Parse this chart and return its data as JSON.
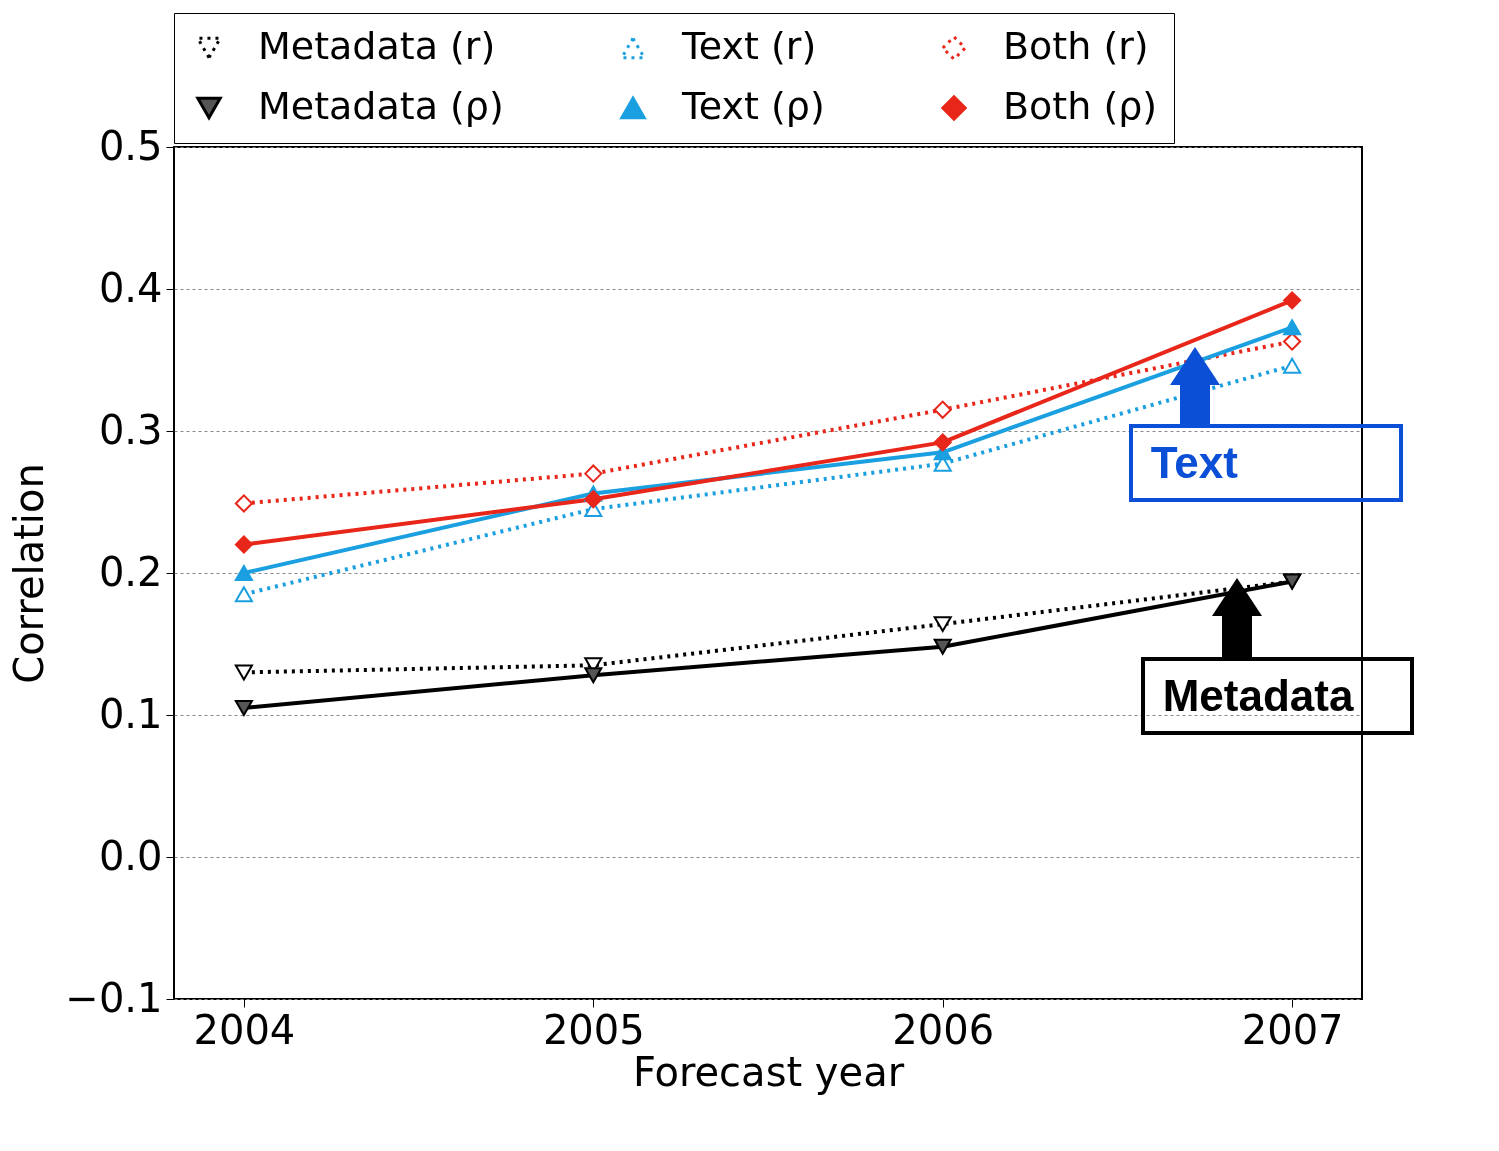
{
  "chart_data": {
    "type": "line",
    "xlabel": "Forecast year",
    "ylabel": "Correlation",
    "x": [
      2004,
      2005,
      2006,
      2007
    ],
    "xlim": [
      2003.8,
      2007.2
    ],
    "xticks": [
      2004,
      2005,
      2006,
      2007
    ],
    "ylim": [
      -0.1,
      0.5
    ],
    "yticks": [
      -0.1,
      {
        "value": 0,
        "label": "0.0"
      },
      0.1,
      0.2,
      0.3,
      0.4,
      0.5
    ],
    "grid": "y",
    "legend": "top",
    "series": [
      {
        "name": "Metadata (r)",
        "color": "#000000",
        "marker": "triangle-down",
        "line_style": "dotted",
        "values": [
          0.13,
          0.135,
          0.164,
          0.194
        ]
      },
      {
        "name": "Text (r)",
        "color": "#1a9fe0",
        "marker": "triangle",
        "line_style": "dotted",
        "values": [
          0.185,
          0.245,
          0.277,
          0.346
        ]
      },
      {
        "name": "Both (r)",
        "color": "#e8261a",
        "marker": "diamond",
        "line_style": "dotted",
        "values": [
          0.249,
          0.27,
          0.315,
          0.363
        ]
      },
      {
        "name": "Metadata (ρ)",
        "color": "#000000",
        "marker": "triangle-down",
        "line_style": "solid",
        "values": [
          0.105,
          0.128,
          0.148,
          0.194
        ]
      },
      {
        "name": "Text (ρ)",
        "color": "#1a9fe0",
        "marker": "triangle",
        "line_style": "solid",
        "values": [
          0.2,
          0.256,
          0.285,
          0.373
        ]
      },
      {
        "name": "Both (ρ)",
        "color": "#e8261a",
        "marker": "diamond",
        "line_style": "solid",
        "values": [
          0.22,
          0.252,
          0.292,
          0.392
        ]
      }
    ],
    "annotations": [
      {
        "text": "Text",
        "x": 2006.75,
        "y": 0.351
      },
      {
        "text": "Metadata",
        "x": 2006.87,
        "y": 0.188
      }
    ]
  }
}
